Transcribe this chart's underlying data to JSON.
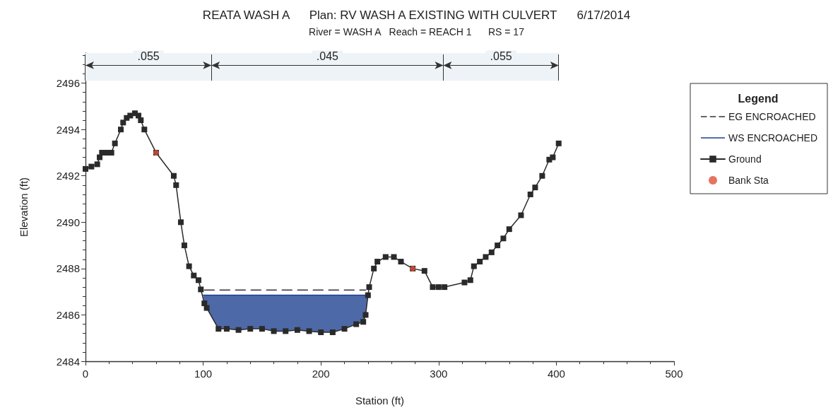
{
  "chart_data": {
    "type": "line",
    "title": "REATA WASH A      Plan: RV WASH A EXISTING WITH CULVERT      6/17/2014",
    "subtitle": "River = WASH A   Reach = REACH 1      RS = 17",
    "xlabel": "Station (ft)",
    "ylabel": "Elevation (ft)",
    "legend_title": "Legend",
    "xlim": [
      0,
      500
    ],
    "xticks": [
      0,
      100,
      200,
      300,
      400,
      500
    ],
    "ylim": [
      2484,
      2497.3
    ],
    "yticks": [
      2484,
      2486,
      2488,
      2490,
      2492,
      2494,
      2496
    ],
    "grid": false,
    "legend": "right",
    "bands": [
      {
        "axis": "x",
        "from": 0,
        "to": 107,
        "label": ".055",
        "color": "#eef3f8"
      },
      {
        "axis": "x",
        "from": 107,
        "to": 304,
        "label": ".045",
        "color": "#eef3f8"
      },
      {
        "axis": "x",
        "from": 304,
        "to": 402,
        "label": ".055",
        "color": "#eef3f8"
      }
    ],
    "series": [
      {
        "name": "EG ENCROACHED",
        "color": "#333333",
        "line_style": "dashed",
        "marker": "none",
        "x": [
          101,
          238
        ],
        "values": [
          2487.07,
          2487.07
        ]
      },
      {
        "name": "WS ENCROACHED",
        "color": "#1c3f8f",
        "marker": "none",
        "x": [
          100,
          101,
          103,
          113,
          120,
          130,
          140,
          150,
          160,
          170,
          180,
          190,
          200,
          210,
          220,
          230,
          236,
          238,
          240
        ],
        "values": [
          2486.85,
          2486.85,
          2486.85,
          2486.85,
          2486.85,
          2486.85,
          2486.85,
          2486.85,
          2486.85,
          2486.85,
          2486.85,
          2486.85,
          2486.85,
          2486.85,
          2486.85,
          2486.85,
          2486.85,
          2486.85,
          2486.85
        ],
        "upper": [
          2486.85,
          2486.85,
          2486.85,
          2486.85,
          2486.85,
          2486.85,
          2486.85,
          2486.85,
          2486.85,
          2486.85,
          2486.85,
          2486.85,
          2486.85,
          2486.85,
          2486.85,
          2486.85,
          2486.85,
          2486.85,
          2486.85
        ],
        "lower": [
          2486.85,
          2486.5,
          2486.3,
          2485.4,
          2485.4,
          2485.35,
          2485.4,
          2485.4,
          2485.3,
          2485.3,
          2485.35,
          2485.3,
          2485.25,
          2485.25,
          2485.4,
          2485.6,
          2485.7,
          2486.0,
          2486.85
        ]
      },
      {
        "name": "Ground",
        "color": "#2a2a2a",
        "marker": "square",
        "x": [
          0,
          5,
          10,
          12,
          14,
          18,
          22,
          25,
          30,
          32,
          35,
          38,
          42,
          45,
          47,
          50,
          60,
          75,
          77,
          81,
          84,
          88,
          92,
          96,
          98,
          101,
          103,
          113,
          120,
          130,
          140,
          150,
          160,
          170,
          180,
          190,
          200,
          210,
          220,
          230,
          236,
          238,
          240,
          241,
          245,
          248,
          255,
          262,
          268,
          278,
          288,
          295,
          300,
          305,
          322,
          327,
          330,
          335,
          340,
          345,
          350,
          355,
          360,
          370,
          378,
          382,
          388,
          394,
          397,
          402
        ],
        "values": [
          2492.3,
          2492.4,
          2492.5,
          2492.8,
          2493.0,
          2493.0,
          2493.0,
          2493.4,
          2494.0,
          2494.3,
          2494.5,
          2494.6,
          2494.7,
          2494.6,
          2494.4,
          2494.0,
          2493.0,
          2492.0,
          2491.6,
          2490.0,
          2489.0,
          2488.1,
          2487.7,
          2487.5,
          2487.1,
          2486.5,
          2486.3,
          2485.4,
          2485.4,
          2485.35,
          2485.4,
          2485.4,
          2485.3,
          2485.3,
          2485.35,
          2485.3,
          2485.25,
          2485.25,
          2485.4,
          2485.6,
          2485.7,
          2486.0,
          2486.85,
          2487.2,
          2488.0,
          2488.3,
          2488.5,
          2488.5,
          2488.3,
          2488.0,
          2487.9,
          2487.2,
          2487.2,
          2487.2,
          2487.4,
          2487.5,
          2488.1,
          2488.3,
          2488.5,
          2488.7,
          2489.0,
          2489.3,
          2489.7,
          2490.3,
          2491.2,
          2491.5,
          2492.0,
          2492.7,
          2492.8,
          2493.4
        ]
      },
      {
        "name": "Bank Sta",
        "type": "scatter",
        "color": "#e0503a",
        "marker": "circle",
        "x": [
          60,
          278
        ],
        "values": [
          2493.0,
          2488.0
        ]
      }
    ]
  }
}
